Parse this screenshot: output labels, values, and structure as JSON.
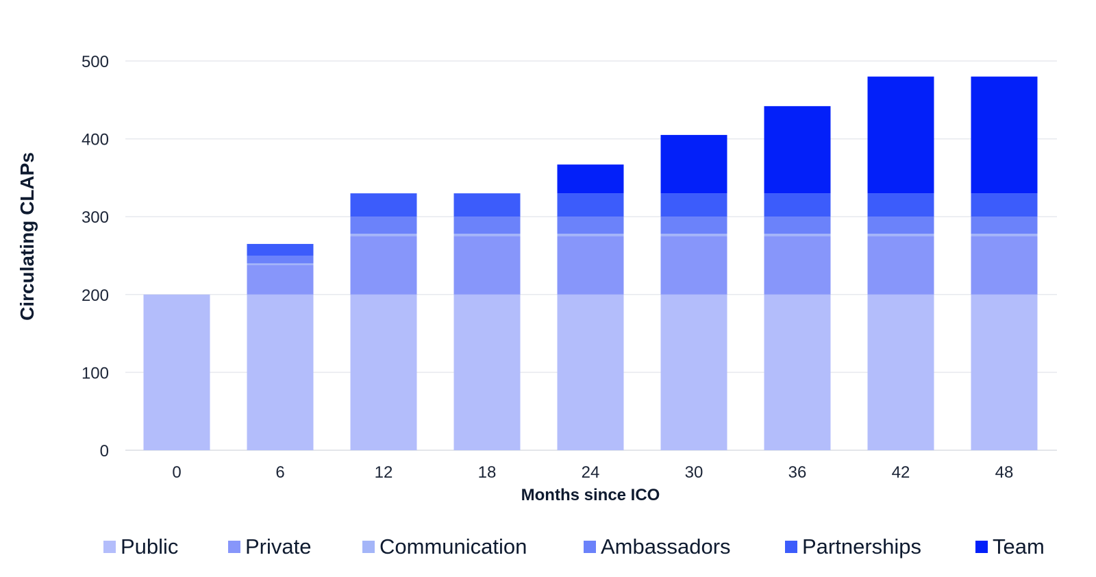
{
  "chart_data": {
    "type": "bar",
    "stacked": true,
    "title": "",
    "xlabel": "Months since ICO",
    "ylabel": "Circulating CLAPs",
    "categories": [
      "0",
      "6",
      "12",
      "18",
      "24",
      "30",
      "36",
      "42",
      "48"
    ],
    "ylim": [
      0,
      500
    ],
    "yticks": [
      0,
      100,
      200,
      300,
      400,
      500
    ],
    "grid": true,
    "legend_position": "bottom",
    "series": [
      {
        "name": "Public",
        "color": "#b3bdfb",
        "values": [
          200,
          200,
          200,
          200,
          200,
          200,
          200,
          200,
          200
        ]
      },
      {
        "name": "Private",
        "color": "#8796fa",
        "values": [
          0,
          38,
          75,
          75,
          75,
          75,
          75,
          75,
          75
        ]
      },
      {
        "name": "Communication",
        "color": "#a4b5f8",
        "values": [
          0,
          2,
          3,
          3,
          3,
          3,
          3,
          3,
          3
        ]
      },
      {
        "name": "Ambassadors",
        "color": "#6b82fa",
        "values": [
          0,
          10,
          22,
          22,
          22,
          22,
          22,
          22,
          22
        ]
      },
      {
        "name": "Partnerships",
        "color": "#3c5cfb",
        "values": [
          0,
          15,
          30,
          30,
          30,
          30,
          30,
          30,
          30
        ]
      },
      {
        "name": "Team",
        "color": "#0320f9",
        "values": [
          0,
          0,
          0,
          0,
          37,
          75,
          112,
          150,
          150
        ]
      }
    ]
  }
}
